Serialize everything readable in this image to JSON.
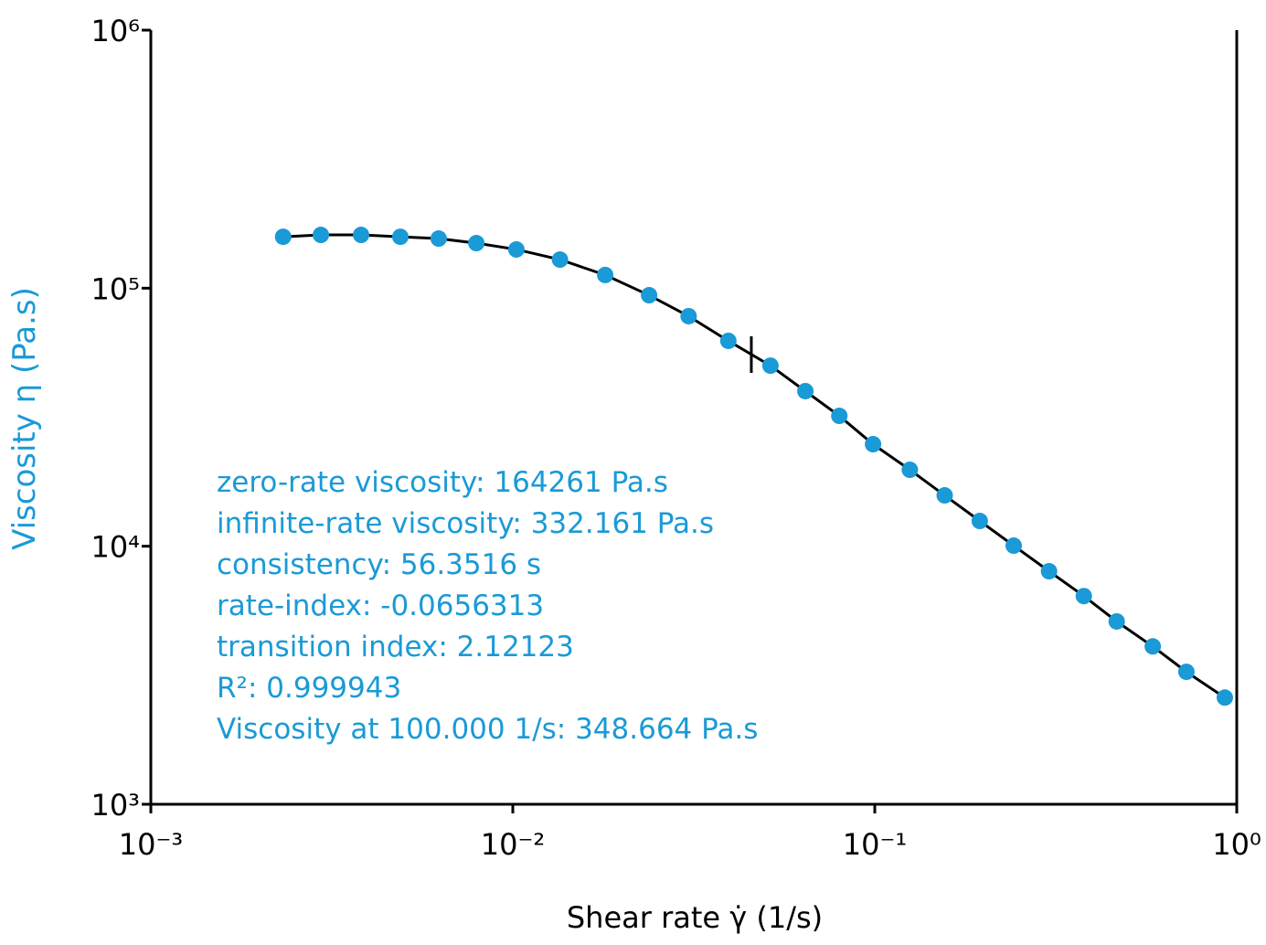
{
  "chart_data": {
    "type": "scatter",
    "x_label": "Shear rate γ̇ (1/s)",
    "y_label": "Viscosity η (Pa.s)",
    "x_log": true,
    "y_log": true,
    "xlim": [
      0.001,
      1
    ],
    "ylim": [
      1000,
      1000000
    ],
    "xticks": [
      {
        "value": 0.001,
        "label": "10⁻³"
      },
      {
        "value": 0.01,
        "label": "10⁻²"
      },
      {
        "value": 0.1,
        "label": "10⁻¹"
      },
      {
        "value": 1,
        "label": "10⁰"
      }
    ],
    "yticks": [
      {
        "value": 1000,
        "label": "10³"
      },
      {
        "value": 10000,
        "label": "10⁴"
      },
      {
        "value": 100000,
        "label": "10⁵"
      },
      {
        "value": 1000000,
        "label": "10⁶"
      }
    ],
    "series": [
      {
        "color": "#1a9ad6",
        "line_color": "#000000",
        "x": [
          0.00232,
          0.00295,
          0.00381,
          0.00489,
          0.00624,
          0.00793,
          0.01023,
          0.0135,
          0.018,
          0.0238,
          0.0306,
          0.0394,
          0.0515,
          0.0643,
          0.0798,
          0.0989,
          0.125,
          0.156,
          0.195,
          0.242,
          0.303,
          0.378,
          0.466,
          0.586,
          0.726,
          0.927
        ],
        "values": [
          158200,
          160900,
          160900,
          158200,
          155700,
          149500,
          141300,
          129100,
          112500,
          93900,
          77900,
          62500,
          50100,
          39900,
          32000,
          24860,
          19780,
          15740,
          12530,
          10050,
          8000,
          6410,
          5110,
          4090,
          3260,
          2590
        ]
      }
    ],
    "transition_marker": {
      "x": 0.0456,
      "y": 55300
    },
    "annotations": [
      "zero-rate viscosity: 164261 Pa.s",
      "infinite-rate viscosity: 332.161 Pa.s",
      "consistency: 56.3516 s",
      "rate-index: -0.0656313",
      "transition index: 2.12123",
      "R²: 0.999943",
      "Viscosity at 100.000 1/s: 348.664 Pa.s"
    ]
  }
}
